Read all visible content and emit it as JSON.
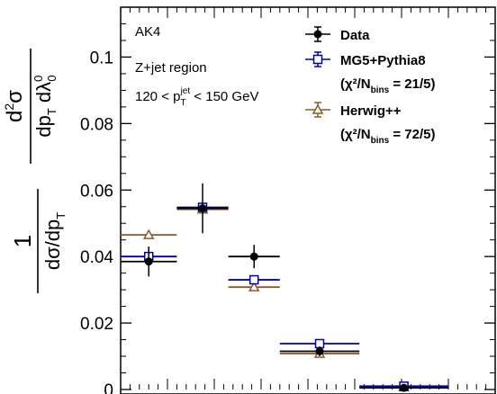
{
  "chart_data": {
    "type": "scatter",
    "ylabel": "1/(dσ/dp_T) d²σ/(dp_T dλ⁰₀)",
    "ylim": [
      0,
      0.115
    ],
    "xlim": [
      0,
      4
    ],
    "yticks": [
      0,
      0.02,
      0.04,
      0.06,
      0.08,
      0.1
    ],
    "ytick_labels": [
      "0",
      "0.02",
      "0.04",
      "0.06",
      "0.08",
      "0.1"
    ],
    "bin_edges": [
      0,
      1,
      2,
      3,
      4
    ],
    "annotations": [
      "AK4",
      "Z+jet region",
      "120 < p_T^jet < 150 GeV"
    ],
    "legend_position": "top-right",
    "series": [
      {
        "name": "Data",
        "legend_label": "Data",
        "marker": "filled-circle",
        "color": "#000000",
        "bins": [
          {
            "x_lo": 0.0,
            "x_hi": 0.6,
            "y": 0.0385,
            "err": 0.0045
          },
          {
            "x_lo": 0.6,
            "x_hi": 1.15,
            "y": 0.0545,
            "err": 0.0075
          },
          {
            "x_lo": 1.15,
            "x_hi": 1.7,
            "y": 0.04,
            "err": 0.0035
          },
          {
            "x_lo": 1.7,
            "x_hi": 2.55,
            "y": 0.0115,
            "err": 0.0015
          },
          {
            "x_lo": 2.55,
            "x_hi": 3.5,
            "y": 0.0005,
            "err": 0.0005
          }
        ]
      },
      {
        "name": "MG5+Pythia8",
        "legend_label": "MG5+Pythia8",
        "legend_sub": "(χ²/N",
        "legend_sub_index": "bins",
        "legend_sub_tail": " = 21/5)",
        "marker": "open-square",
        "color": "#0000aa",
        "bins": [
          {
            "x_lo": 0.0,
            "x_hi": 0.6,
            "y": 0.04,
            "err": 0.001
          },
          {
            "x_lo": 0.6,
            "x_hi": 1.15,
            "y": 0.0548,
            "err": 0.001
          },
          {
            "x_lo": 1.15,
            "x_hi": 1.7,
            "y": 0.033,
            "err": 0.0008
          },
          {
            "x_lo": 1.7,
            "x_hi": 2.55,
            "y": 0.0138,
            "err": 0.0006
          },
          {
            "x_lo": 2.55,
            "x_hi": 3.5,
            "y": 0.001,
            "err": 0.0002
          }
        ]
      },
      {
        "name": "Herwig++",
        "legend_label": "Herwig++",
        "legend_sub": "(χ²/N",
        "legend_sub_index": "bins",
        "legend_sub_tail": " = 72/5)",
        "marker": "open-triangle",
        "color": "#8b5a2b",
        "bins": [
          {
            "x_lo": 0.0,
            "x_hi": 0.6,
            "y": 0.0465,
            "err": 0.001
          },
          {
            "x_lo": 0.6,
            "x_hi": 1.15,
            "y": 0.0542,
            "err": 0.001
          },
          {
            "x_lo": 1.15,
            "x_hi": 1.7,
            "y": 0.0308,
            "err": 0.0008
          },
          {
            "x_lo": 1.7,
            "x_hi": 2.55,
            "y": 0.0108,
            "err": 0.0006
          },
          {
            "x_lo": 2.55,
            "x_hi": 3.5,
            "y": 0.0007,
            "err": 0.0002
          }
        ]
      }
    ]
  }
}
